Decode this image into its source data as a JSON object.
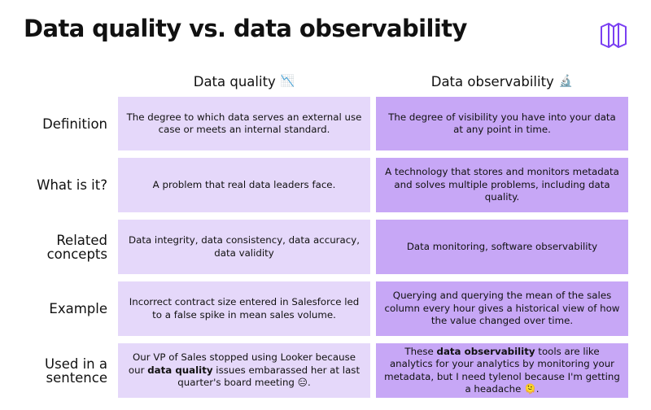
{
  "title": "Data quality vs. data observability",
  "brand_logo": "hexagonal-cube-logo",
  "colors": {
    "quality_cell_bg": "#e5d8fa",
    "observability_cell_bg": "#c7a7f6",
    "logo_stroke": "#7a3ff2",
    "text": "#111111"
  },
  "columns": {
    "quality": {
      "label": "Data quality",
      "emoji": "📉"
    },
    "observability": {
      "label": "Data observability",
      "emoji": "🔬"
    }
  },
  "rows": [
    {
      "label": "Definition",
      "quality": "The degree to which data serves an external use case or meets an internal standard.",
      "observability": "The degree of visibility you have into your data at any point in time."
    },
    {
      "label": "What is it?",
      "quality": "A problem that real data leaders face.",
      "observability": "A technology that stores and monitors metadata and solves multiple problems, including data quality."
    },
    {
      "label": "Related concepts",
      "quality": "Data integrity, data consistency, data accuracy, data validity",
      "observability": "Data monitoring, software observability"
    },
    {
      "label": "Example",
      "quality": "Incorrect contract size entered in Salesforce led to a false spike in mean sales volume.",
      "observability": "Querying and querying the mean of the sales column every hour gives a historical view of how the value changed over time."
    },
    {
      "label": "Used in a sentence",
      "quality": {
        "before": "Our VP of Sales stopped using Looker because our ",
        "bold": "data quality",
        "after": " issues embarassed her at last quarter's board meeting 😑."
      },
      "observability": {
        "before": "These ",
        "bold": "data observability",
        "after": " tools are like analytics for your analytics by monitoring your metadata, but I need tylenol because I'm getting a headache 🫠."
      }
    }
  ]
}
